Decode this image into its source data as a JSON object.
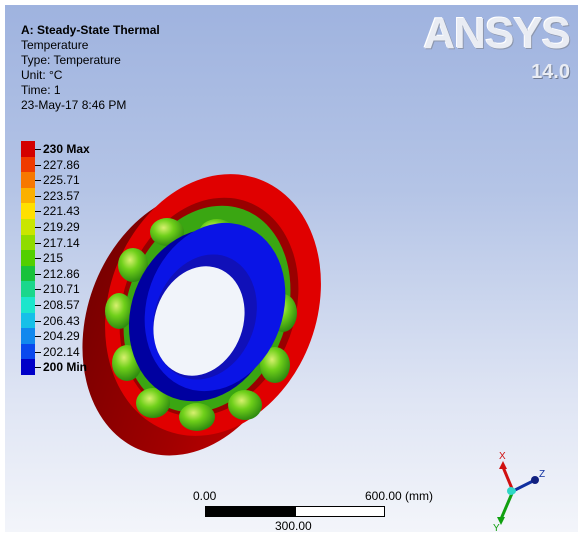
{
  "info": {
    "title": "A: Steady-State Thermal",
    "result_name": "Temperature",
    "type_line": "Type: Temperature",
    "unit_line": "Unit: °C",
    "time_line": "Time: 1",
    "date_line": "23-May-17 8:46 PM"
  },
  "logo": {
    "brand": "ANSYS",
    "version": "14.0"
  },
  "legend": {
    "entries": [
      {
        "label": "230 Max",
        "color": "#d40000",
        "bold": true
      },
      {
        "label": "227.86",
        "color": "#ef3a00",
        "bold": false
      },
      {
        "label": "225.71",
        "color": "#f77800",
        "bold": false
      },
      {
        "label": "223.57",
        "color": "#fbb000",
        "bold": false
      },
      {
        "label": "221.43",
        "color": "#ffe000",
        "bold": false
      },
      {
        "label": "219.29",
        "color": "#c9e600",
        "bold": false
      },
      {
        "label": "217.14",
        "color": "#8fdc00",
        "bold": false
      },
      {
        "label": "215",
        "color": "#52cf00",
        "bold": false
      },
      {
        "label": "212.86",
        "color": "#18c23c",
        "bold": false
      },
      {
        "label": "210.71",
        "color": "#1ad78c",
        "bold": false
      },
      {
        "label": "208.57",
        "color": "#1ce6cc",
        "bold": false
      },
      {
        "label": "206.43",
        "color": "#16c0e8",
        "bold": false
      },
      {
        "label": "204.29",
        "color": "#1188ee",
        "bold": false
      },
      {
        "label": "202.14",
        "color": "#0a48ee",
        "bold": false
      },
      {
        "label": "200 Min",
        "color": "#0000c8",
        "bold": true
      }
    ]
  },
  "scale_bar": {
    "left_label": "0.00",
    "right_label": "600.00 (mm)",
    "mid_label": "300.00"
  },
  "axes": {
    "x_label": "X",
    "y_label": "Y",
    "z_label": "Z"
  },
  "colors": {
    "max": "#d40000",
    "min": "#0000c8",
    "mid": "#52cf00"
  }
}
